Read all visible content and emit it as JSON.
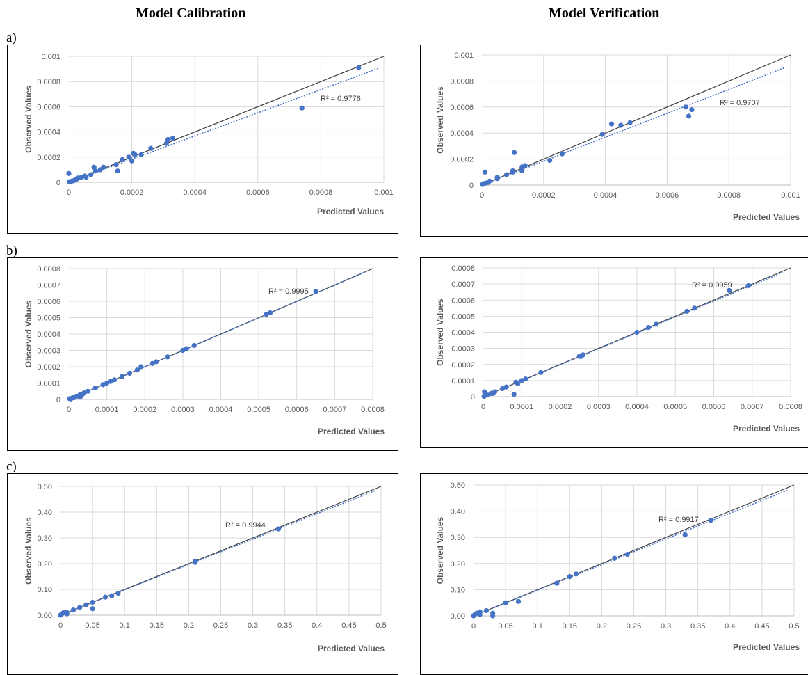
{
  "columns": {
    "calibration": "Model Calibration",
    "verification": "Model Verification"
  },
  "row_labels": [
    "a)",
    "b)",
    "c)"
  ],
  "colors": {
    "points": "#4472C4",
    "trendline": "#4472C4",
    "identity_line": "#404040",
    "grid": "#d9d9d9"
  },
  "chart_data": [
    {
      "type": "scatter",
      "xlabel": "Predicted Values",
      "ylabel": "Observed Values",
      "xlim": [
        0,
        0.001
      ],
      "ylim": [
        0,
        0.001
      ],
      "xticks": [
        "0",
        "0.0002",
        "0.0004",
        "0.0006",
        "0.0008",
        "0.001"
      ],
      "yticks": [
        "0",
        "0.0002",
        "0.0004",
        "0.0006",
        "0.0008",
        "0.001"
      ],
      "r2_label": "R² = 0.9776",
      "trend_slope": 0.92,
      "points": [
        [
          0.0,
          7e-05
        ],
        [
          2e-06,
          5e-06
        ],
        [
          5e-06,
          3e-06
        ],
        [
          1e-05,
          1e-05
        ],
        [
          1.5e-05,
          1.2e-05
        ],
        [
          2e-05,
          2e-05
        ],
        [
          2.5e-05,
          2.5e-05
        ],
        [
          3e-05,
          3.5e-05
        ],
        [
          4e-05,
          4e-05
        ],
        [
          5e-05,
          5e-05
        ],
        [
          5.5e-05,
          4e-05
        ],
        [
          7e-05,
          6e-05
        ],
        [
          8e-05,
          0.00012
        ],
        [
          8.5e-05,
          9e-05
        ],
        [
          0.0001,
          0.0001
        ],
        [
          0.00011,
          0.00012
        ],
        [
          0.00015,
          0.00014
        ],
        [
          0.000155,
          9e-05
        ],
        [
          0.00017,
          0.00018
        ],
        [
          0.00019,
          0.0002
        ],
        [
          0.0002,
          0.00017
        ],
        [
          0.000205,
          0.00023
        ],
        [
          0.00021,
          0.00022
        ],
        [
          0.00023,
          0.00022
        ],
        [
          0.00026,
          0.00027
        ],
        [
          0.00031,
          0.00031
        ],
        [
          0.000315,
          0.00034
        ],
        [
          0.00033,
          0.00035
        ],
        [
          0.00074,
          0.00059
        ],
        [
          0.00092,
          0.00091
        ]
      ]
    },
    {
      "type": "scatter",
      "xlabel": "Predicted Values",
      "ylabel": "Observed Values",
      "xlim": [
        0,
        0.001
      ],
      "ylim": [
        0,
        0.001
      ],
      "xticks": [
        "0",
        "0.0002",
        "0.0004",
        "0.0006",
        "0.0008",
        "0.001"
      ],
      "yticks": [
        "0",
        "0.0002",
        "0.0004",
        "0.0006",
        "0.0008",
        "0.001"
      ],
      "r2_label": "R² = 0.9707",
      "trend_slope": 0.92,
      "points": [
        [
          2e-06,
          5e-06
        ],
        [
          5e-06,
          1e-05
        ],
        [
          1e-05,
          0.0001
        ],
        [
          1.2e-05,
          1.5e-05
        ],
        [
          2e-05,
          2e-05
        ],
        [
          2.5e-05,
          3e-05
        ],
        [
          5e-05,
          5e-05
        ],
        [
          5e-05,
          6e-05
        ],
        [
          8e-05,
          8e-05
        ],
        [
          0.0001,
          0.0001
        ],
        [
          0.0001,
          0.00011
        ],
        [
          0.000105,
          0.00025
        ],
        [
          0.00013,
          0.00014
        ],
        [
          0.00013,
          0.00011
        ],
        [
          0.00014,
          0.00015
        ],
        [
          0.00022,
          0.00019
        ],
        [
          0.00026,
          0.00024
        ],
        [
          0.00039,
          0.00039
        ],
        [
          0.00042,
          0.00047
        ],
        [
          0.00045,
          0.00046
        ],
        [
          0.00048,
          0.00048
        ],
        [
          0.00066,
          0.0006
        ],
        [
          0.00067,
          0.00053
        ],
        [
          0.00068,
          0.00058
        ]
      ]
    },
    {
      "type": "scatter",
      "xlabel": "Predicted Values",
      "ylabel": "Observed Values",
      "xlim": [
        0,
        0.0008
      ],
      "ylim": [
        0,
        0.0008
      ],
      "xticks": [
        "0",
        "0.0001",
        "0.0002",
        "0.0003",
        "0.0004",
        "0.0005",
        "0.0006",
        "0.0007",
        "0.0008"
      ],
      "yticks": [
        "0",
        "0.0001",
        "0.0002",
        "0.0003",
        "0.0004",
        "0.0005",
        "0.0006",
        "0.0007",
        "0.0008"
      ],
      "r2_label": "R² = 0.9995",
      "trend_slope": 0.998,
      "points": [
        [
          2e-06,
          5e-06
        ],
        [
          5e-06,
          3e-06
        ],
        [
          1e-05,
          1e-05
        ],
        [
          1.5e-05,
          1.2e-05
        ],
        [
          2e-05,
          2e-05
        ],
        [
          2.5e-05,
          2e-05
        ],
        [
          3e-05,
          3e-05
        ],
        [
          3e-05,
          1.5e-05
        ],
        [
          3.5e-05,
          3e-05
        ],
        [
          4e-05,
          4e-05
        ],
        [
          5e-05,
          5e-05
        ],
        [
          7e-05,
          7e-05
        ],
        [
          9e-05,
          9e-05
        ],
        [
          0.0001,
          0.0001
        ],
        [
          0.00011,
          0.00011
        ],
        [
          0.00012,
          0.00012
        ],
        [
          0.00014,
          0.00014
        ],
        [
          0.00016,
          0.00016
        ],
        [
          0.00018,
          0.00018
        ],
        [
          0.00019,
          0.0002
        ],
        [
          0.00022,
          0.00022
        ],
        [
          0.00023,
          0.00023
        ],
        [
          0.00026,
          0.00026
        ],
        [
          0.0003,
          0.0003
        ],
        [
          0.00031,
          0.00031
        ],
        [
          0.00033,
          0.00033
        ],
        [
          0.00052,
          0.00052
        ],
        [
          0.00053,
          0.00053
        ],
        [
          0.00065,
          0.00066
        ]
      ]
    },
    {
      "type": "scatter",
      "xlabel": "Predicted Values",
      "ylabel": "Observed Values",
      "xlim": [
        0,
        0.0008
      ],
      "ylim": [
        0,
        0.0008
      ],
      "xticks": [
        "0",
        "0.0001",
        "0.0002",
        "0.0003",
        "0.0004",
        "0.0005",
        "0.0006",
        "0.0007",
        "0.0008"
      ],
      "yticks": [
        "0",
        "0.0001",
        "0.0002",
        "0.0003",
        "0.0004",
        "0.0005",
        "0.0006",
        "0.0007",
        "0.0008"
      ],
      "r2_label": "R² = 0.9959",
      "trend_slope": 0.99,
      "points": [
        [
          2e-06,
          2e-06
        ],
        [
          3e-06,
          3e-05
        ],
        [
          1e-05,
          1e-05
        ],
        [
          2e-05,
          2e-05
        ],
        [
          2.5e-05,
          2e-05
        ],
        [
          3e-05,
          3e-05
        ],
        [
          5e-05,
          5e-05
        ],
        [
          6e-05,
          6e-05
        ],
        [
          8e-05,
          1.5e-05
        ],
        [
          8.5e-05,
          9e-05
        ],
        [
          9e-05,
          8e-05
        ],
        [
          0.0001,
          0.0001
        ],
        [
          0.00011,
          0.00011
        ],
        [
          0.00015,
          0.00015
        ],
        [
          0.00025,
          0.00025
        ],
        [
          0.000255,
          0.00025
        ],
        [
          0.00026,
          0.00026
        ],
        [
          0.0004,
          0.0004
        ],
        [
          0.00043,
          0.00043
        ],
        [
          0.00045,
          0.00045
        ],
        [
          0.00053,
          0.00053
        ],
        [
          0.00055,
          0.00055
        ],
        [
          0.00064,
          0.00066
        ],
        [
          0.00069,
          0.00069
        ]
      ]
    },
    {
      "type": "scatter",
      "xlabel": "Predicted Values",
      "ylabel": "Observed Values",
      "xlim": [
        0,
        0.5
      ],
      "ylim": [
        0,
        0.5
      ],
      "xticks": [
        "0",
        "0.05",
        "0.1",
        "0.15",
        "0.2",
        "0.25",
        "0.3",
        "0.35",
        "0.4",
        "0.45",
        "0.5"
      ],
      "yticks": [
        "0.00",
        "0.10",
        "0.20",
        "0.30",
        "0.40",
        "0.50"
      ],
      "r2_label": "R² = 0.9944",
      "trend_slope": 0.985,
      "points": [
        [
          0.0,
          0.0
        ],
        [
          0.002,
          0.005
        ],
        [
          0.005,
          0.01
        ],
        [
          0.01,
          0.005
        ],
        [
          0.01,
          0.01
        ],
        [
          0.02,
          0.02
        ],
        [
          0.03,
          0.03
        ],
        [
          0.04,
          0.04
        ],
        [
          0.05,
          0.05
        ],
        [
          0.05,
          0.025
        ],
        [
          0.07,
          0.07
        ],
        [
          0.08,
          0.075
        ],
        [
          0.09,
          0.085
        ],
        [
          0.21,
          0.21
        ],
        [
          0.21,
          0.205
        ],
        [
          0.34,
          0.335
        ]
      ]
    },
    {
      "type": "scatter",
      "xlabel": "Predicted Values",
      "ylabel": "Observed Values",
      "xlim": [
        0,
        0.5
      ],
      "ylim": [
        0,
        0.5
      ],
      "xticks": [
        "0",
        "0.05",
        "0.1",
        "0.15",
        "0.2",
        "0.25",
        "0.3",
        "0.35",
        "0.4",
        "0.45",
        "0.5"
      ],
      "yticks": [
        "0.00",
        "0.10",
        "0.20",
        "0.30",
        "0.40",
        "0.50"
      ],
      "r2_label": "R² = 0.9917",
      "trend_slope": 0.98,
      "points": [
        [
          0.0,
          0.0
        ],
        [
          0.002,
          0.005
        ],
        [
          0.005,
          0.01
        ],
        [
          0.01,
          0.015
        ],
        [
          0.01,
          0.005
        ],
        [
          0.02,
          0.02
        ],
        [
          0.03,
          0.0
        ],
        [
          0.03,
          0.01
        ],
        [
          0.05,
          0.05
        ],
        [
          0.07,
          0.055
        ],
        [
          0.13,
          0.125
        ],
        [
          0.15,
          0.15
        ],
        [
          0.16,
          0.16
        ],
        [
          0.22,
          0.22
        ],
        [
          0.24,
          0.235
        ],
        [
          0.33,
          0.31
        ],
        [
          0.37,
          0.365
        ]
      ]
    }
  ]
}
